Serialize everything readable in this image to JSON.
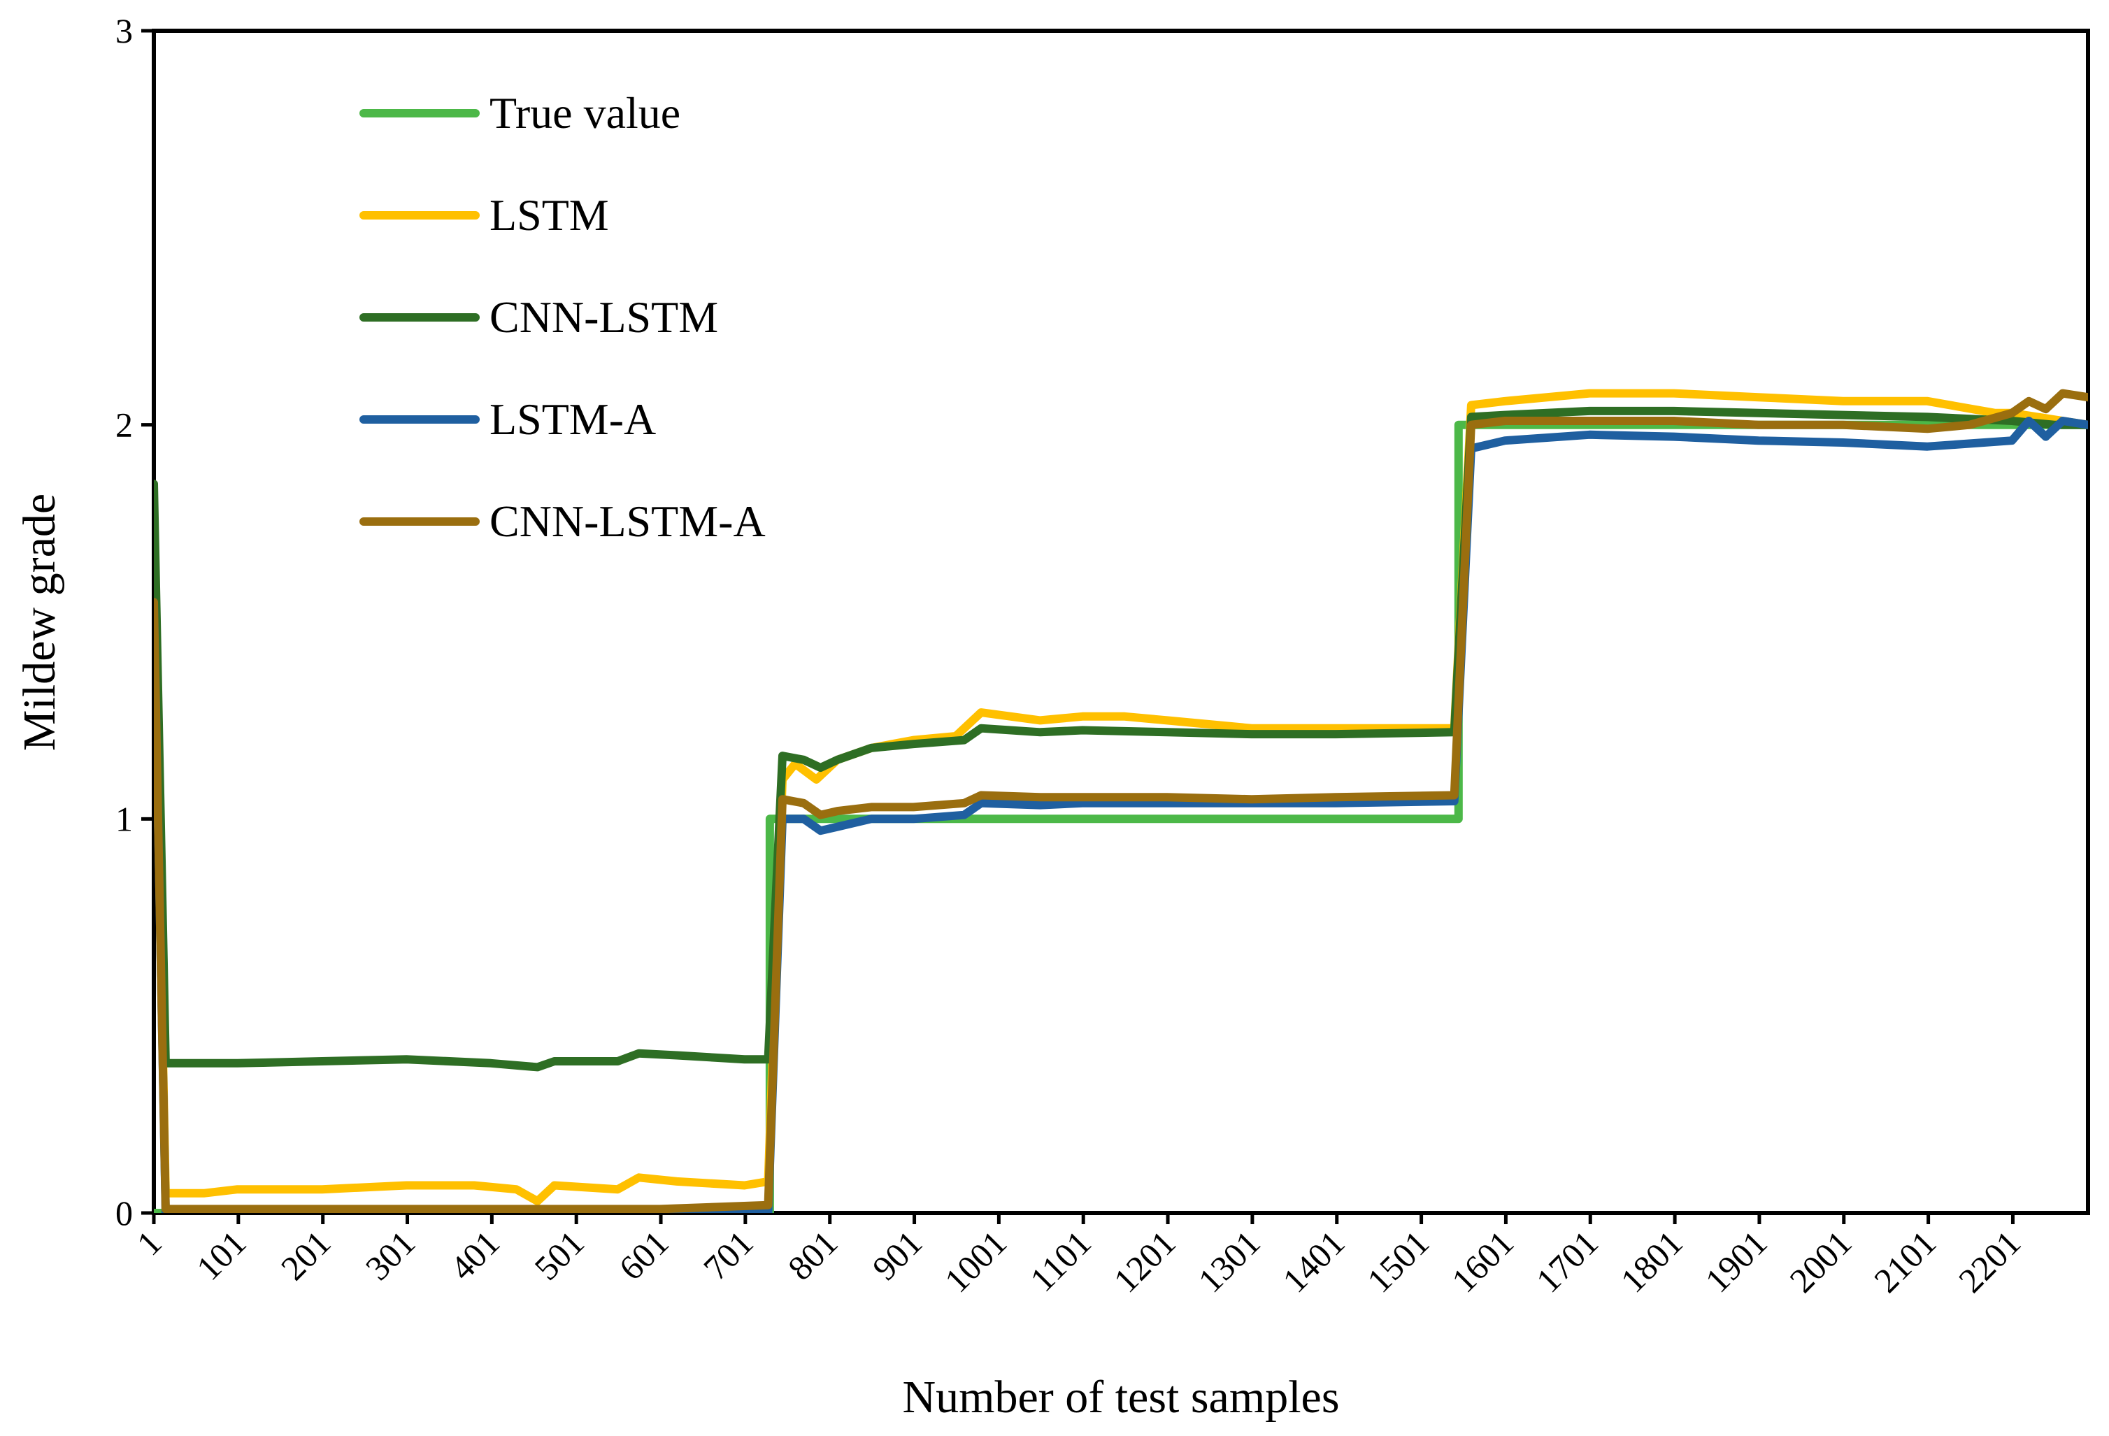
{
  "chart_data": {
    "type": "line",
    "title": "",
    "xlabel": "Number of test samples",
    "ylabel": "Mildew grade",
    "xlim": [
      1,
      2290
    ],
    "ylim": [
      0,
      3
    ],
    "yticks": [
      "0",
      "1",
      "2",
      "3"
    ],
    "xticks": [
      "1",
      "101",
      "201",
      "301",
      "401",
      "501",
      "601",
      "701",
      "801",
      "901",
      "1001",
      "1101",
      "1201",
      "1301",
      "1401",
      "1501",
      "1601",
      "1701",
      "1801",
      "1901",
      "2001",
      "2101",
      "2201"
    ],
    "grid": false,
    "legend": "top-left",
    "series": [
      {
        "name": "True value",
        "color": "#4cb848",
        "points": [
          [
            1,
            0
          ],
          [
            730,
            0
          ],
          [
            730,
            1
          ],
          [
            1545,
            1
          ],
          [
            1545,
            2
          ],
          [
            2290,
            2
          ]
        ]
      },
      {
        "name": "LSTM",
        "color": "#ffc000",
        "points": [
          [
            1,
            1.55
          ],
          [
            15,
            0.05
          ],
          [
            60,
            0.05
          ],
          [
            100,
            0.06
          ],
          [
            200,
            0.06
          ],
          [
            300,
            0.07
          ],
          [
            380,
            0.07
          ],
          [
            430,
            0.06
          ],
          [
            455,
            0.03
          ],
          [
            475,
            0.07
          ],
          [
            550,
            0.06
          ],
          [
            575,
            0.09
          ],
          [
            620,
            0.08
          ],
          [
            700,
            0.07
          ],
          [
            728,
            0.08
          ],
          [
            745,
            1.1
          ],
          [
            760,
            1.14
          ],
          [
            785,
            1.1
          ],
          [
            810,
            1.15
          ],
          [
            850,
            1.18
          ],
          [
            900,
            1.2
          ],
          [
            950,
            1.21
          ],
          [
            980,
            1.27
          ],
          [
            1050,
            1.25
          ],
          [
            1100,
            1.26
          ],
          [
            1150,
            1.26
          ],
          [
            1200,
            1.25
          ],
          [
            1300,
            1.23
          ],
          [
            1400,
            1.23
          ],
          [
            1540,
            1.23
          ],
          [
            1560,
            2.05
          ],
          [
            1600,
            2.06
          ],
          [
            1700,
            2.08
          ],
          [
            1800,
            2.08
          ],
          [
            1900,
            2.07
          ],
          [
            2000,
            2.06
          ],
          [
            2100,
            2.06
          ],
          [
            2180,
            2.03
          ],
          [
            2200,
            2.03
          ],
          [
            2230,
            2.02
          ],
          [
            2260,
            2.01
          ],
          [
            2290,
            2.0
          ]
        ]
      },
      {
        "name": "CNN-LSTM",
        "color": "#2e6e24",
        "points": [
          [
            1,
            1.85
          ],
          [
            15,
            0.38
          ],
          [
            100,
            0.38
          ],
          [
            200,
            0.385
          ],
          [
            300,
            0.39
          ],
          [
            400,
            0.38
          ],
          [
            455,
            0.37
          ],
          [
            475,
            0.385
          ],
          [
            550,
            0.385
          ],
          [
            575,
            0.405
          ],
          [
            620,
            0.4
          ],
          [
            700,
            0.39
          ],
          [
            728,
            0.39
          ],
          [
            745,
            1.16
          ],
          [
            770,
            1.15
          ],
          [
            790,
            1.13
          ],
          [
            810,
            1.15
          ],
          [
            850,
            1.18
          ],
          [
            900,
            1.19
          ],
          [
            960,
            1.2
          ],
          [
            980,
            1.23
          ],
          [
            1050,
            1.22
          ],
          [
            1100,
            1.225
          ],
          [
            1200,
            1.22
          ],
          [
            1300,
            1.215
          ],
          [
            1400,
            1.215
          ],
          [
            1540,
            1.22
          ],
          [
            1560,
            2.02
          ],
          [
            1600,
            2.025
          ],
          [
            1700,
            2.035
          ],
          [
            1800,
            2.035
          ],
          [
            1900,
            2.03
          ],
          [
            2000,
            2.025
          ],
          [
            2100,
            2.02
          ],
          [
            2200,
            2.01
          ],
          [
            2250,
            2.0
          ],
          [
            2290,
            2.0
          ]
        ]
      },
      {
        "name": "LSTM-A",
        "color": "#1f5fa0",
        "points": [
          [
            1,
            1.55
          ],
          [
            15,
            0.0
          ],
          [
            200,
            0.0
          ],
          [
            400,
            0.0
          ],
          [
            600,
            0.0
          ],
          [
            728,
            0.0
          ],
          [
            745,
            1.0
          ],
          [
            770,
            1.0
          ],
          [
            790,
            0.97
          ],
          [
            810,
            0.98
          ],
          [
            850,
            1.0
          ],
          [
            900,
            1.0
          ],
          [
            960,
            1.01
          ],
          [
            980,
            1.04
          ],
          [
            1050,
            1.035
          ],
          [
            1100,
            1.04
          ],
          [
            1200,
            1.04
          ],
          [
            1300,
            1.04
          ],
          [
            1400,
            1.04
          ],
          [
            1540,
            1.045
          ],
          [
            1560,
            1.94
          ],
          [
            1600,
            1.96
          ],
          [
            1700,
            1.975
          ],
          [
            1800,
            1.97
          ],
          [
            1900,
            1.96
          ],
          [
            2000,
            1.955
          ],
          [
            2100,
            1.945
          ],
          [
            2200,
            1.96
          ],
          [
            2220,
            2.01
          ],
          [
            2240,
            1.97
          ],
          [
            2260,
            2.01
          ],
          [
            2290,
            2.0
          ]
        ]
      },
      {
        "name": "CNN-LSTM-A",
        "color": "#9a6e0f",
        "points": [
          [
            1,
            1.55
          ],
          [
            15,
            0.01
          ],
          [
            200,
            0.01
          ],
          [
            400,
            0.01
          ],
          [
            600,
            0.01
          ],
          [
            728,
            0.02
          ],
          [
            745,
            1.05
          ],
          [
            770,
            1.04
          ],
          [
            790,
            1.01
          ],
          [
            810,
            1.02
          ],
          [
            850,
            1.03
          ],
          [
            900,
            1.03
          ],
          [
            960,
            1.04
          ],
          [
            980,
            1.06
          ],
          [
            1050,
            1.055
          ],
          [
            1100,
            1.055
          ],
          [
            1200,
            1.055
          ],
          [
            1300,
            1.05
          ],
          [
            1400,
            1.055
          ],
          [
            1540,
            1.06
          ],
          [
            1560,
            2.0
          ],
          [
            1600,
            2.01
          ],
          [
            1700,
            2.01
          ],
          [
            1800,
            2.01
          ],
          [
            1900,
            2.0
          ],
          [
            2000,
            2.0
          ],
          [
            2100,
            1.99
          ],
          [
            2150,
            2.0
          ],
          [
            2200,
            2.03
          ],
          [
            2220,
            2.06
          ],
          [
            2240,
            2.04
          ],
          [
            2260,
            2.08
          ],
          [
            2290,
            2.07
          ]
        ]
      }
    ]
  }
}
